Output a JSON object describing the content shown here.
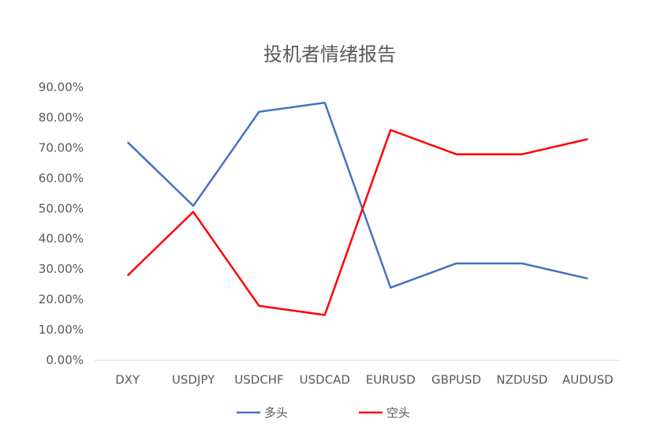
{
  "chart_data": {
    "type": "line",
    "title": "投机者情绪报告",
    "categories": [
      "DXY",
      "USDJPY",
      "USDCHF",
      "USDCAD",
      "EURUSD",
      "GBPUSD",
      "NZDUSD",
      "AUDUSD"
    ],
    "series": [
      {
        "name": "多头",
        "color": "#4472c4",
        "values": [
          72,
          51,
          82,
          85,
          24,
          32,
          32,
          27
        ]
      },
      {
        "name": "空头",
        "color": "#ff0000",
        "values": [
          28,
          49,
          18,
          15,
          76,
          68,
          68,
          73
        ]
      }
    ],
    "ylim": [
      0,
      90
    ],
    "yticks": [
      {
        "value": 0,
        "label": "0.00%"
      },
      {
        "value": 10,
        "label": "10.00%"
      },
      {
        "value": 20,
        "label": "20.00%"
      },
      {
        "value": 30,
        "label": "30.00%"
      },
      {
        "value": 40,
        "label": "40.00%"
      },
      {
        "value": 50,
        "label": "50.00%"
      },
      {
        "value": 60,
        "label": "60.00%"
      },
      {
        "value": 70,
        "label": "70.00%"
      },
      {
        "value": 80,
        "label": "80.00%"
      },
      {
        "value": 90,
        "label": "90.00%"
      }
    ],
    "grid": false,
    "legend": "bottom"
  }
}
